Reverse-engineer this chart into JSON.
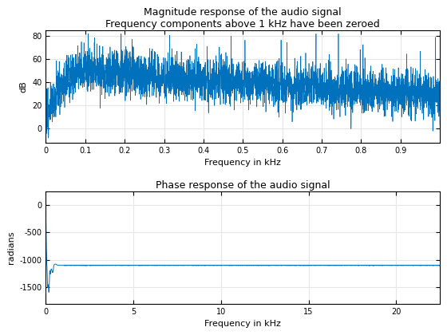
{
  "mag_title": "Magnitude response of the audio signal",
  "mag_subtitle": "Frequency components above 1 kHz have been zeroed",
  "mag_xlabel": "Frequency in kHz",
  "mag_ylabel": "dB",
  "mag_xlim": [
    0,
    1.0
  ],
  "mag_ylim": [
    -12,
    85
  ],
  "mag_yticks": [
    0,
    20,
    40,
    60,
    80
  ],
  "mag_xticks": [
    0,
    0.1,
    0.2,
    0.3,
    0.4,
    0.5,
    0.6,
    0.7,
    0.8,
    0.9
  ],
  "phase_title": "Phase response of the audio signal",
  "phase_xlabel": "Frequency in kHz",
  "phase_ylabel": "radians",
  "phase_xlim": [
    0,
    22.5
  ],
  "phase_ylim": [
    -1800,
    250
  ],
  "phase_yticks": [
    0,
    -500,
    -1000,
    -1500
  ],
  "phase_xticks": [
    0,
    5,
    10,
    15,
    20
  ],
  "line_color": "#0072BD",
  "bg_color": "#FFFFFF",
  "grid_color": "#E6E6E6",
  "mag_seed": 12,
  "mag_n_points": 4000,
  "phase_flat_value": -1100,
  "phase_transition_khz": 1.0,
  "phase_peak_min": -1650,
  "phase_n_points": 5000,
  "phase_total_khz": 22.5
}
